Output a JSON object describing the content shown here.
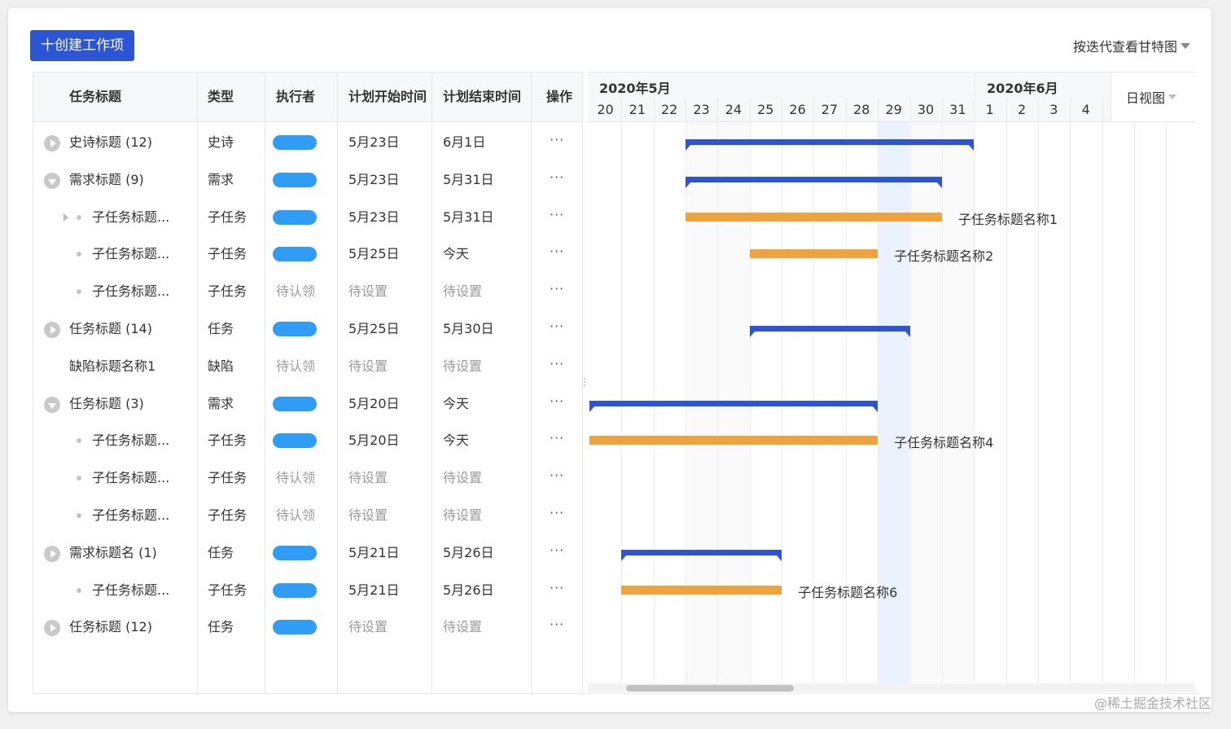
{
  "toolbar": {
    "create_label": "十创建工作项",
    "view_switch_label": "按迭代查看甘特图"
  },
  "table": {
    "headers": [
      "任务标题",
      "类型",
      "执行者",
      "计划开始时间",
      "计划结束时间",
      "操作"
    ],
    "more_label": "···",
    "rows": [
      {
        "title": "史诗标题 (12)",
        "type": "史诗",
        "assignee": "",
        "start": "5月23日",
        "end": "6月1日",
        "level": 0,
        "toggle": "collapsed"
      },
      {
        "title": "需求标题 (9)",
        "type": "需求",
        "assignee": "",
        "start": "5月23日",
        "end": "5月31日",
        "level": 0,
        "toggle": "expanded"
      },
      {
        "title": "子任务标题...",
        "type": "子任务",
        "assignee": "",
        "start": "5月23日",
        "end": "5月31日",
        "level": 1,
        "toggle": "arrow"
      },
      {
        "title": "子任务标题...",
        "type": "子任务",
        "assignee": "",
        "start": "5月25日",
        "end": "今天",
        "level": 1,
        "toggle": "none"
      },
      {
        "title": "子任务标题...",
        "type": "子任务",
        "assignee": "待认领",
        "start": "待设置",
        "end": "待设置",
        "level": 1,
        "toggle": "none"
      },
      {
        "title": "任务标题 (14)",
        "type": "任务",
        "assignee": "",
        "start": "5月25日",
        "end": "5月30日",
        "level": 0,
        "toggle": "collapsed"
      },
      {
        "title": "缺陷标题名称1",
        "type": "缺陷",
        "assignee": "待认领",
        "start": "待设置",
        "end": "待设置",
        "level": 0,
        "toggle": "none"
      },
      {
        "title": "任务标题 (3)",
        "type": "需求",
        "assignee": "",
        "start": "5月20日",
        "end": "今天",
        "level": 0,
        "toggle": "expanded"
      },
      {
        "title": "子任务标题...",
        "type": "子任务",
        "assignee": "",
        "start": "5月20日",
        "end": "今天",
        "level": 1,
        "toggle": "none"
      },
      {
        "title": "子任务标题...",
        "type": "子任务",
        "assignee": "待认领",
        "start": "待设置",
        "end": "待设置",
        "level": 1,
        "toggle": "none"
      },
      {
        "title": "子任务标题...",
        "type": "子任务",
        "assignee": "待认领",
        "start": "待设置",
        "end": "待设置",
        "level": 1,
        "toggle": "none"
      },
      {
        "title": "需求标题名 (1)",
        "type": "任务",
        "assignee": "",
        "start": "5月21日",
        "end": "5月26日",
        "level": 0,
        "toggle": "collapsed"
      },
      {
        "title": "子任务标题...",
        "type": "子任务",
        "assignee": "",
        "start": "5月21日",
        "end": "5月26日",
        "level": 1,
        "toggle": "none"
      },
      {
        "title": "任务标题 (12)",
        "type": "任务",
        "assignee": "",
        "start": "待设置",
        "end": "待设置",
        "level": 0,
        "toggle": "collapsed"
      }
    ]
  },
  "gantt": {
    "months": [
      "2020年5月",
      "2020年6月"
    ],
    "days": [
      "20",
      "21",
      "22",
      "23",
      "24",
      "25",
      "26",
      "27",
      "28",
      "29",
      "30",
      "31",
      "1",
      "2",
      "3",
      "4"
    ],
    "today": "29",
    "view_mode_label": "日视图",
    "bars": [
      {
        "row": 0,
        "kind": "parent",
        "start_day": "23",
        "end_day": "1",
        "label": ""
      },
      {
        "row": 1,
        "kind": "parent",
        "start_day": "23",
        "end_day": "31",
        "label": ""
      },
      {
        "row": 2,
        "kind": "child",
        "start_day": "23",
        "end_day": "31",
        "label": "子任务标题名称1"
      },
      {
        "row": 3,
        "kind": "child",
        "start_day": "25",
        "end_day": "29",
        "label": "子任务标题名称2"
      },
      {
        "row": 5,
        "kind": "parent",
        "start_day": "25",
        "end_day": "30",
        "label": ""
      },
      {
        "row": 7,
        "kind": "parent",
        "start_day": "20",
        "end_day": "29",
        "label": ""
      },
      {
        "row": 8,
        "kind": "child",
        "start_day": "20",
        "end_day": "29",
        "label": "子任务标题名称4"
      },
      {
        "row": 11,
        "kind": "parent",
        "start_day": "21",
        "end_day": "26",
        "label": ""
      },
      {
        "row": 12,
        "kind": "child",
        "start_day": "21",
        "end_day": "26",
        "label": "子任务标题名称6"
      }
    ]
  },
  "watermark": "@稀土掘金技术社区",
  "colors": {
    "accent_blue": "#2b55d4",
    "child_orange": "#f0a23d",
    "assignee_blob": "#2f9cf6",
    "today_highlight": "#eaf2ff"
  }
}
